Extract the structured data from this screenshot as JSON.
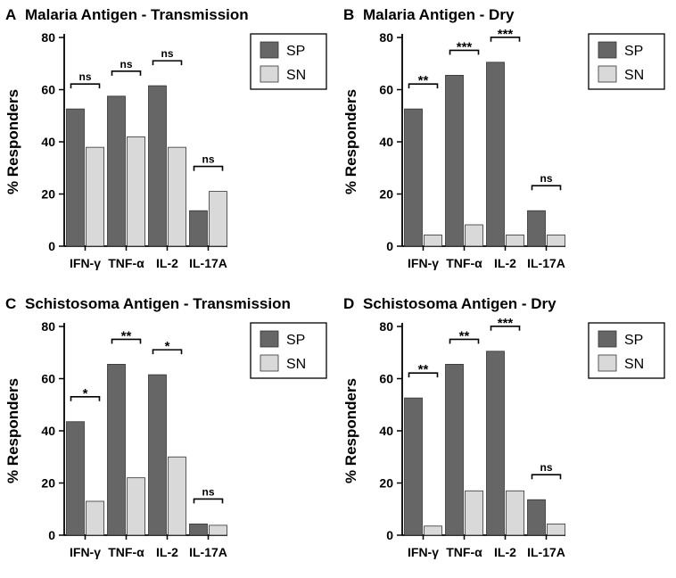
{
  "colors": {
    "sp": "#666666",
    "sn": "#d9d9d9",
    "bar_stroke": "#333333",
    "axis": "#000000",
    "text": "#000000"
  },
  "chart_data": [
    {
      "type": "bar",
      "letter": "A",
      "title": "Malaria Antigen - Transmission",
      "categories": [
        "IFN-γ",
        "TNF-α",
        "IL-2",
        "IL-17A"
      ],
      "series": [
        {
          "name": "SP",
          "values": [
            52.6,
            57.5,
            61.5,
            13.6
          ]
        },
        {
          "name": "SN",
          "values": [
            37.9,
            41.9,
            37.9,
            21.0
          ]
        }
      ],
      "significance": [
        "ns",
        "ns",
        "ns",
        "ns"
      ],
      "xlabel": "",
      "ylabel": "% Responders",
      "ylim": [
        0,
        80
      ],
      "yticks": [
        0,
        20,
        40,
        60,
        80
      ],
      "legend": [
        "SP",
        "SN"
      ],
      "legend_position": "top-right"
    },
    {
      "type": "bar",
      "letter": "B",
      "title": "Malaria Antigen - Dry",
      "categories": [
        "IFN-γ",
        "TNF-α",
        "IL-2",
        "IL-17A"
      ],
      "series": [
        {
          "name": "SP",
          "values": [
            52.6,
            65.5,
            70.5,
            13.6
          ]
        },
        {
          "name": "SN",
          "values": [
            4.3,
            8.2,
            4.3,
            4.3
          ]
        }
      ],
      "significance": [
        "**",
        "***",
        "***",
        "ns"
      ],
      "xlabel": "",
      "ylabel": "% Responders",
      "ylim": [
        0,
        80
      ],
      "yticks": [
        0,
        20,
        40,
        60,
        80
      ],
      "legend": [
        "SP",
        "SN"
      ],
      "legend_position": "top-right"
    },
    {
      "type": "bar",
      "letter": "C",
      "title": "Schistosoma Antigen - Transmission",
      "categories": [
        "IFN-γ",
        "TNF-α",
        "IL-2",
        "IL-17A"
      ],
      "series": [
        {
          "name": "SP",
          "values": [
            43.5,
            65.5,
            61.5,
            4.3
          ]
        },
        {
          "name": "SN",
          "values": [
            13.0,
            22.0,
            30.0,
            3.8
          ]
        }
      ],
      "significance": [
        "*",
        "**",
        "*",
        "ns"
      ],
      "xlabel": "",
      "ylabel": "% Responders",
      "ylim": [
        0,
        80
      ],
      "yticks": [
        0,
        20,
        40,
        60,
        80
      ],
      "legend": [
        "SP",
        "SN"
      ],
      "legend_position": "top-right"
    },
    {
      "type": "bar",
      "letter": "D",
      "title": "Schistosoma Antigen - Dry",
      "categories": [
        "IFN-γ",
        "TNF-α",
        "IL-2",
        "IL-17A"
      ],
      "series": [
        {
          "name": "SP",
          "values": [
            52.6,
            65.5,
            70.5,
            13.6
          ]
        },
        {
          "name": "SN",
          "values": [
            3.5,
            17.0,
            17.0,
            4.3
          ]
        }
      ],
      "significance": [
        "**",
        "**",
        "***",
        "ns"
      ],
      "xlabel": "",
      "ylabel": "% Responders",
      "ylim": [
        0,
        80
      ],
      "yticks": [
        0,
        20,
        40,
        60,
        80
      ],
      "legend": [
        "SP",
        "SN"
      ],
      "legend_position": "top-right"
    }
  ]
}
